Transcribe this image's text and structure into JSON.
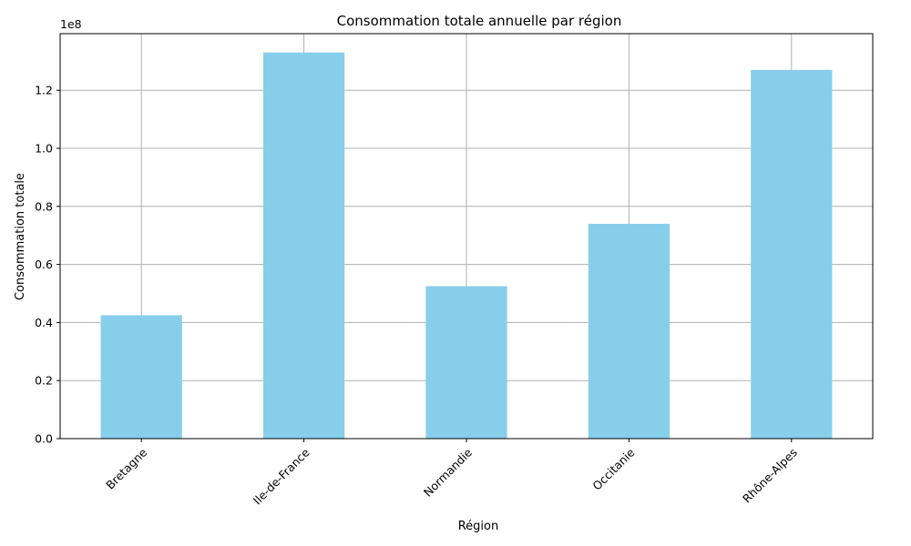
{
  "chart_data": {
    "type": "bar",
    "title": "Consommation totale annuelle par région",
    "xlabel": "Région",
    "ylabel": "Consommation totale",
    "y_offset_text": "1e8",
    "categories": [
      "Bretagne",
      "Ile-de-France",
      "Normandie",
      "Occitanie",
      "Rhône-Alpes"
    ],
    "values": [
      42500000,
      133000000,
      52500000,
      74000000,
      127000000
    ],
    "ylim": [
      0,
      139500000
    ],
    "yticks": [
      0,
      20000000,
      40000000,
      60000000,
      80000000,
      100000000,
      120000000
    ],
    "ytick_labels": [
      "0.0",
      "0.2",
      "0.4",
      "0.6",
      "0.8",
      "1.0",
      "1.2"
    ],
    "grid": true,
    "bar_color": "#87ceeb",
    "grid_color": "#b0b0b0"
  }
}
